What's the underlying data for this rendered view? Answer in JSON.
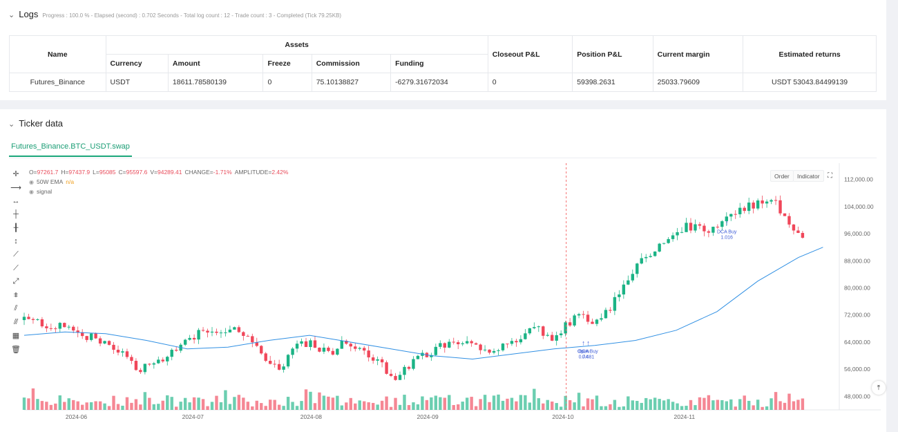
{
  "logs": {
    "title": "Logs",
    "stats": "Progress : 100.0 % - Elapsed (second) : 0.702  Seconds - Total log count : 12 - Trade count : 3 - Completed (Tick 79.25KB)"
  },
  "table": {
    "h_name": "Name",
    "h_assets": "Assets",
    "h_closeout": "Closeout P&L",
    "h_position": "Position P&L",
    "h_margin": "Current margin",
    "h_returns": "Estimated returns",
    "sub": [
      "Currency",
      "Amount",
      "Freeze",
      "Commission",
      "Funding"
    ],
    "row": {
      "name": "Futures_Binance",
      "currency": "USDT",
      "amount": "18611.78580139",
      "freeze": "0",
      "commission": "75.10138827",
      "funding": "-6279.31672034",
      "closeout": "0",
      "position": "59398.2631",
      "margin": "25033.79609",
      "returns": "USDT 53043.84499139"
    }
  },
  "ticker": {
    "title": "Ticker data",
    "tab": "Futures_Binance.BTC_USDT.swap",
    "ohlc": {
      "o_label": "O=",
      "o": "97261.7",
      "h_label": "H=",
      "h": "97437.9",
      "l_label": "L=",
      "l": "95085",
      "c_label": "C=",
      "c": "95597.6",
      "v_label": "V=",
      "v": "94289.41",
      "change_label": "CHANGE=",
      "change": "-1.71%",
      "amp_label": "AMPLITUDE=",
      "amp": "2.42%"
    },
    "ema_label": "50W EMA",
    "ema_value": "n/a",
    "signal_label": "signal",
    "order_btn": "Order",
    "indicator_btn": "Indicator",
    "scroll_top": "⤒"
  },
  "chart_data": {
    "type": "candlestick",
    "y_ticks": [
      "112,000.00",
      "104,000.00",
      "96,000.00",
      "88,000.00",
      "80,000.00",
      "72,000.00",
      "64,000.00",
      "56,000.00",
      "48,000.00"
    ],
    "x_ticks": [
      "2024-06",
      "2024-07",
      "2024-08",
      "2024-09",
      "2024-10",
      "2024-11"
    ],
    "ylim": [
      44000,
      116000
    ],
    "series": [
      {
        "name": "50W EMA",
        "color": "#2f8fe3",
        "points": [
          [
            0,
            66000
          ],
          [
            0.05,
            67000
          ],
          [
            0.1,
            66500
          ],
          [
            0.15,
            64500
          ],
          [
            0.2,
            62000
          ],
          [
            0.25,
            62500
          ],
          [
            0.3,
            64500
          ],
          [
            0.35,
            66000
          ],
          [
            0.4,
            64000
          ],
          [
            0.45,
            62000
          ],
          [
            0.5,
            60000
          ],
          [
            0.55,
            59000
          ],
          [
            0.6,
            60500
          ],
          [
            0.65,
            62000
          ],
          [
            0.7,
            63000
          ],
          [
            0.75,
            64500
          ],
          [
            0.8,
            67500
          ],
          [
            0.85,
            73000
          ],
          [
            0.9,
            82000
          ],
          [
            0.95,
            89000
          ],
          [
            0.98,
            92000
          ]
        ]
      }
    ],
    "annotations": [
      {
        "text": "DCA Buy",
        "sub": "1.016",
        "x": 0.862,
        "y": 96500
      },
      {
        "text": "Open",
        "sub": "0.74",
        "x": 0.686,
        "y": 64500
      },
      {
        "text": "DCA Buy",
        "sub": "0.481",
        "x": 0.692,
        "y": 64500
      }
    ],
    "up_color": "#1bb385",
    "down_color": "#f0475a"
  }
}
